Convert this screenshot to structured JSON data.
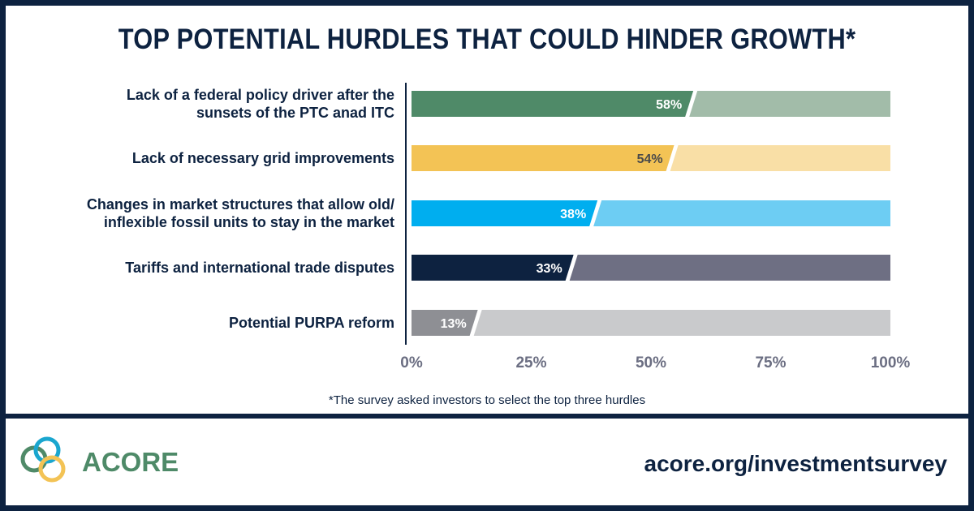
{
  "chart_data": {
    "type": "bar",
    "orientation": "horizontal",
    "title": "TOP POTENTIAL HURDLES THAT COULD HINDER GROWTH*",
    "categories": [
      [
        "Lack of a federal policy driver after the",
        "sunsets of the PTC anad ITC"
      ],
      [
        "Lack of necessary grid improvements"
      ],
      [
        "Changes in market structures that allow old/",
        "inflexible fossil units to stay in the market"
      ],
      [
        "Tariffs and international trade disputes"
      ],
      [
        "Potential PURPA reform"
      ]
    ],
    "values": [
      58,
      54,
      38,
      33,
      13
    ],
    "data_labels": [
      "58%",
      "54%",
      "38%",
      "33%",
      "13%"
    ],
    "colors": [
      "#4f8a68",
      "#f3c355",
      "#00aeef",
      "#0d2240",
      "#8e8f94"
    ],
    "remainder_colors": [
      "#a2bca9",
      "#f9dfa6",
      "#6dcdf3",
      "#6e6f83",
      "#c9cacc"
    ],
    "label_colors": [
      "#ffffff",
      "#4a4a4a",
      "#ffffff",
      "#ffffff",
      "#ffffff"
    ],
    "xlim": [
      0,
      100
    ],
    "xticks": [
      "0%",
      "25%",
      "50%",
      "75%",
      "100%"
    ],
    "grid": false,
    "footnote": "*The survey asked investors to select the top three hurdles"
  },
  "footer": {
    "brand": "ACORE",
    "url": "acore.org/investmentsurvey"
  }
}
